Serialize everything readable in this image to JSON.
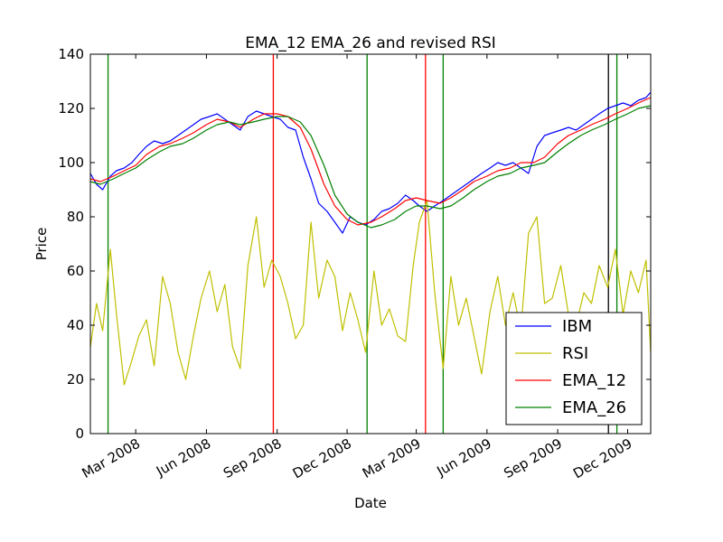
{
  "chart_data": {
    "type": "line",
    "title": "EMA_12 EMA_26 and revised RSI",
    "xlabel": "Date",
    "ylabel": "Price",
    "xlim": [
      "2008-01-02",
      "2009-12-31"
    ],
    "ylim": [
      0,
      140
    ],
    "y_ticks": [
      "0",
      "20",
      "40",
      "60",
      "80",
      "100",
      "120",
      "140"
    ],
    "x_ticks": [
      {
        "date": "2008-03-01",
        "label": "Mar 2008"
      },
      {
        "date": "2008-06-01",
        "label": "Jun 2008"
      },
      {
        "date": "2008-09-01",
        "label": "Sep 2008"
      },
      {
        "date": "2008-12-01",
        "label": "Dec 2008"
      },
      {
        "date": "2009-03-01",
        "label": "Mar 2009"
      },
      {
        "date": "2009-06-01",
        "label": "Jun 2009"
      },
      {
        "date": "2009-09-01",
        "label": "Sep 2009"
      },
      {
        "date": "2009-12-01",
        "label": "Dec 2009"
      }
    ],
    "grid": false,
    "legend_position": "lower-right",
    "series": [
      {
        "name": "IBM",
        "color": "#0000ff",
        "x": [
          "2008-01-02",
          "2008-01-10",
          "2008-01-18",
          "2008-01-28",
          "2008-02-05",
          "2008-02-15",
          "2008-02-25",
          "2008-03-05",
          "2008-03-15",
          "2008-03-25",
          "2008-04-05",
          "2008-04-15",
          "2008-04-25",
          "2008-05-05",
          "2008-05-15",
          "2008-05-25",
          "2008-06-05",
          "2008-06-15",
          "2008-06-25",
          "2008-07-05",
          "2008-07-15",
          "2008-07-25",
          "2008-08-05",
          "2008-08-15",
          "2008-08-25",
          "2008-09-05",
          "2008-09-15",
          "2008-09-25",
          "2008-10-05",
          "2008-10-15",
          "2008-10-25",
          "2008-11-05",
          "2008-11-15",
          "2008-11-25",
          "2008-12-05",
          "2008-12-15",
          "2008-12-25",
          "2009-01-05",
          "2009-01-15",
          "2009-01-25",
          "2009-02-05",
          "2009-02-15",
          "2009-02-25",
          "2009-03-05",
          "2009-03-15",
          "2009-03-25",
          "2009-04-05",
          "2009-04-15",
          "2009-04-25",
          "2009-05-05",
          "2009-05-15",
          "2009-05-25",
          "2009-06-05",
          "2009-06-15",
          "2009-06-25",
          "2009-07-05",
          "2009-07-15",
          "2009-07-25",
          "2009-08-05",
          "2009-08-15",
          "2009-08-25",
          "2009-09-05",
          "2009-09-15",
          "2009-09-25",
          "2009-10-05",
          "2009-10-15",
          "2009-10-25",
          "2009-11-05",
          "2009-11-15",
          "2009-11-25",
          "2009-12-05",
          "2009-12-15",
          "2009-12-25",
          "2009-12-31"
        ],
        "values": [
          96,
          92,
          90,
          95,
          97,
          98,
          100,
          103,
          106,
          108,
          107,
          108,
          110,
          112,
          114,
          116,
          117,
          118,
          116,
          114,
          112,
          117,
          119,
          118,
          117,
          116,
          113,
          112,
          102,
          94,
          85,
          82,
          78,
          74,
          80,
          78,
          77,
          79,
          82,
          83,
          85,
          88,
          86,
          84,
          82,
          84,
          86,
          88,
          90,
          92,
          94,
          96,
          98,
          100,
          99,
          100,
          98,
          96,
          106,
          110,
          111,
          112,
          113,
          112,
          114,
          116,
          118,
          120,
          121,
          122,
          121,
          123,
          124,
          126
        ]
      },
      {
        "name": "RSI",
        "color": "#bfbf00",
        "x": [
          "2008-01-02",
          "2008-01-10",
          "2008-01-18",
          "2008-01-28",
          "2008-02-05",
          "2008-02-15",
          "2008-02-25",
          "2008-03-05",
          "2008-03-15",
          "2008-03-25",
          "2008-04-05",
          "2008-04-15",
          "2008-04-25",
          "2008-05-05",
          "2008-05-15",
          "2008-05-25",
          "2008-06-05",
          "2008-06-15",
          "2008-06-25",
          "2008-07-05",
          "2008-07-15",
          "2008-07-25",
          "2008-08-05",
          "2008-08-15",
          "2008-08-25",
          "2008-09-05",
          "2008-09-15",
          "2008-09-25",
          "2008-10-05",
          "2008-10-15",
          "2008-10-25",
          "2008-11-05",
          "2008-11-15",
          "2008-11-25",
          "2008-12-05",
          "2008-12-15",
          "2008-12-25",
          "2009-01-05",
          "2009-01-15",
          "2009-01-25",
          "2009-02-05",
          "2009-02-15",
          "2009-02-25",
          "2009-03-05",
          "2009-03-15",
          "2009-03-25",
          "2009-04-05",
          "2009-04-15",
          "2009-04-25",
          "2009-05-05",
          "2009-05-15",
          "2009-05-25",
          "2009-06-05",
          "2009-06-15",
          "2009-06-25",
          "2009-07-05",
          "2009-07-15",
          "2009-07-25",
          "2009-08-05",
          "2009-08-15",
          "2009-08-25",
          "2009-09-05",
          "2009-09-15",
          "2009-09-25",
          "2009-10-05",
          "2009-10-15",
          "2009-10-25",
          "2009-11-05",
          "2009-11-15",
          "2009-11-25",
          "2009-12-05",
          "2009-12-15",
          "2009-12-25",
          "2009-12-31"
        ],
        "values": [
          32,
          48,
          38,
          68,
          44,
          18,
          27,
          36,
          42,
          25,
          58,
          48,
          30,
          20,
          36,
          50,
          60,
          45,
          55,
          32,
          24,
          62,
          80,
          54,
          64,
          58,
          48,
          35,
          40,
          78,
          50,
          64,
          58,
          38,
          52,
          42,
          30,
          60,
          40,
          46,
          36,
          34,
          62,
          78,
          86,
          52,
          24,
          58,
          40,
          50,
          36,
          22,
          45,
          58,
          40,
          52,
          38,
          74,
          80,
          48,
          50,
          62,
          44,
          40,
          52,
          48,
          62,
          54,
          68,
          44,
          60,
          52,
          64,
          30
        ]
      },
      {
        "name": "EMA_12",
        "color": "#ff0000",
        "x": [
          "2008-01-02",
          "2008-01-15",
          "2008-02-01",
          "2008-02-15",
          "2008-03-01",
          "2008-03-15",
          "2008-04-01",
          "2008-04-15",
          "2008-05-01",
          "2008-05-15",
          "2008-06-01",
          "2008-06-15",
          "2008-07-01",
          "2008-07-15",
          "2008-08-01",
          "2008-08-15",
          "2008-09-01",
          "2008-09-15",
          "2008-10-01",
          "2008-10-15",
          "2008-11-01",
          "2008-11-15",
          "2008-12-01",
          "2008-12-15",
          "2009-01-01",
          "2009-01-15",
          "2009-02-01",
          "2009-02-15",
          "2009-03-01",
          "2009-03-15",
          "2009-04-01",
          "2009-04-15",
          "2009-05-01",
          "2009-05-15",
          "2009-06-01",
          "2009-06-15",
          "2009-07-01",
          "2009-07-15",
          "2009-08-01",
          "2009-08-15",
          "2009-09-01",
          "2009-09-15",
          "2009-10-01",
          "2009-10-15",
          "2009-11-01",
          "2009-11-15",
          "2009-12-01",
          "2009-12-15",
          "2009-12-31"
        ],
        "values": [
          94,
          93,
          95,
          97,
          99,
          103,
          106,
          107,
          109,
          111,
          114,
          116,
          115,
          113,
          116,
          118,
          118,
          117,
          113,
          105,
          92,
          84,
          79,
          77,
          78,
          80,
          83,
          86,
          87,
          86,
          85,
          87,
          90,
          93,
          95,
          97,
          98,
          100,
          100,
          102,
          107,
          110,
          112,
          114,
          116,
          118,
          120,
          122,
          124
        ]
      },
      {
        "name": "EMA_26",
        "color": "#008000",
        "x": [
          "2008-01-02",
          "2008-01-15",
          "2008-02-01",
          "2008-02-15",
          "2008-03-01",
          "2008-03-15",
          "2008-04-01",
          "2008-04-15",
          "2008-05-01",
          "2008-05-15",
          "2008-06-01",
          "2008-06-15",
          "2008-07-01",
          "2008-07-15",
          "2008-08-01",
          "2008-08-15",
          "2008-09-01",
          "2008-09-15",
          "2008-10-01",
          "2008-10-15",
          "2008-11-01",
          "2008-11-15",
          "2008-12-01",
          "2008-12-15",
          "2009-01-01",
          "2009-01-15",
          "2009-02-01",
          "2009-02-15",
          "2009-03-01",
          "2009-03-15",
          "2009-04-01",
          "2009-04-15",
          "2009-05-01",
          "2009-05-15",
          "2009-06-01",
          "2009-06-15",
          "2009-07-01",
          "2009-07-15",
          "2009-08-01",
          "2009-08-15",
          "2009-09-01",
          "2009-09-15",
          "2009-10-01",
          "2009-10-15",
          "2009-11-01",
          "2009-11-15",
          "2009-12-01",
          "2009-12-15",
          "2009-12-31"
        ],
        "values": [
          93,
          92,
          94,
          96,
          98,
          101,
          104,
          106,
          107,
          109,
          112,
          114,
          115,
          114,
          115,
          116,
          117,
          117,
          115,
          110,
          99,
          88,
          81,
          78,
          76,
          77,
          79,
          82,
          84,
          84,
          83,
          84,
          87,
          90,
          93,
          95,
          96,
          98,
          99,
          100,
          104,
          107,
          110,
          112,
          114,
          116,
          118,
          120,
          121
        ]
      }
    ],
    "vertical_lines": [
      {
        "date": "2008-01-25",
        "color": "#008000"
      },
      {
        "date": "2008-08-27",
        "color": "#ff0000"
      },
      {
        "date": "2008-12-27",
        "color": "#008000"
      },
      {
        "date": "2009-03-13",
        "color": "#ff0000"
      },
      {
        "date": "2009-04-05",
        "color": "#008000"
      },
      {
        "date": "2009-11-06",
        "color": "#000000"
      },
      {
        "date": "2009-11-17",
        "color": "#008000"
      }
    ]
  }
}
